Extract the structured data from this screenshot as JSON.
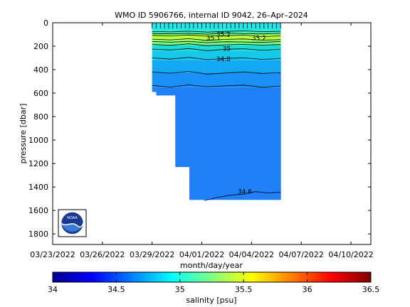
{
  "chart_data": {
    "type": "heatmap",
    "title": "WMO ID 5906766, internal ID 9042, 26–Apr–2024",
    "xlabel": "month/day/year",
    "ylabel": "pressure [dbar]",
    "x_ticks": [
      {
        "day": 0,
        "label": "03/23/2022"
      },
      {
        "day": 3,
        "label": "03/26/2022"
      },
      {
        "day": 6,
        "label": "03/29/2022"
      },
      {
        "day": 9,
        "label": "04/01/2022"
      },
      {
        "day": 12,
        "label": "04/04/2022"
      },
      {
        "day": 15,
        "label": "04/07/2022"
      },
      {
        "day": 18,
        "label": "04/10/2022"
      }
    ],
    "x_start_date": "03/23/2022",
    "xlim_days": [
      0,
      19.2
    ],
    "y_ticks": [
      0,
      200,
      400,
      600,
      800,
      1000,
      1200,
      1400,
      1600,
      1800
    ],
    "ylim": [
      0,
      1890
    ],
    "y_reversed": true,
    "colorbar": {
      "label": "salinity [psu]",
      "ticks": [
        34,
        34.5,
        35,
        35.5,
        36,
        36.5
      ],
      "range": [
        34,
        36.5
      ],
      "colormap": "jet"
    },
    "profiles_days": [
      6.0,
      6.25,
      6.5,
      6.75,
      7.0,
      7.25,
      7.5,
      7.75,
      8.0,
      8.25,
      8.5,
      8.75,
      9.0,
      9.25,
      9.5,
      9.75,
      10.0,
      10.25,
      10.5,
      10.75,
      11.0,
      11.25,
      11.5,
      11.75,
      12.0,
      12.25,
      12.5,
      12.75,
      13.0,
      13.25,
      13.5,
      13.75
    ],
    "data_region": [
      {
        "day_from": 6.0,
        "day_to": 6.25,
        "max_depth": 590
      },
      {
        "day_from": 6.25,
        "day_to": 7.4,
        "max_depth": 620
      },
      {
        "day_from": 7.4,
        "day_to": 8.25,
        "max_depth": 1230
      },
      {
        "day_from": 8.25,
        "day_to": 13.75,
        "max_depth": 1510
      }
    ],
    "salinity_layers": [
      {
        "from_depth": 0,
        "to_depth": 70,
        "salinity": 34.92,
        "color": "#22e8e8"
      },
      {
        "from_depth": 70,
        "to_depth": 100,
        "salinity": 35.05,
        "color": "#4cf0b0"
      },
      {
        "from_depth": 100,
        "to_depth": 150,
        "salinity": 35.2,
        "color": "#b8ff40"
      },
      {
        "from_depth": 150,
        "to_depth": 190,
        "salinity": 35.1,
        "color": "#7cf878"
      },
      {
        "from_depth": 190,
        "to_depth": 240,
        "salinity": 34.95,
        "color": "#18dcd8"
      },
      {
        "from_depth": 240,
        "to_depth": 320,
        "salinity": 34.85,
        "color": "#14c8ec"
      },
      {
        "from_depth": 320,
        "to_depth": 430,
        "salinity": 34.72,
        "color": "#12a8f4"
      },
      {
        "from_depth": 430,
        "to_depth": 550,
        "salinity": 34.65,
        "color": "#1890f6"
      },
      {
        "from_depth": 550,
        "to_depth": 1520,
        "salinity": 34.58,
        "color": "#2080f8"
      }
    ],
    "contours": [
      {
        "level": 35.0,
        "depths": [
          75,
          78,
          72,
          80,
          74,
          70,
          76,
          73
        ]
      },
      {
        "level": 35.1,
        "depths": [
          92,
          95,
          90,
          98,
          88,
          93,
          96,
          91
        ]
      },
      {
        "level": 35.2,
        "depths": [
          108,
          112,
          104,
          115,
          110,
          106,
          118,
          112
        ]
      },
      {
        "level": 35.2,
        "depths": [
          140,
          146,
          136,
          150,
          142,
          138,
          148,
          144
        ]
      },
      {
        "level": 35.1,
        "depths": [
          160,
          166,
          158,
          170,
          162,
          164,
          168,
          160
        ]
      },
      {
        "level": 35.0,
        "depths": [
          185,
          192,
          180,
          195,
          188,
          184,
          190,
          186
        ]
      },
      {
        "level": 34.9,
        "depths": [
          225,
          232,
          220,
          238,
          226,
          222,
          234,
          228
        ]
      },
      {
        "level": 34.8,
        "depths": [
          300,
          310,
          295,
          315,
          305,
          300,
          312,
          306
        ]
      },
      {
        "level": 34.7,
        "depths": [
          420,
          430,
          415,
          438,
          428,
          420,
          432,
          425
        ]
      },
      {
        "level": 34.6,
        "depths": [
          535,
          548,
          530,
          545,
          538,
          532,
          550,
          540
        ]
      }
    ],
    "contour_labels": [
      {
        "text": "35.1",
        "day": 9.7,
        "depth": 130
      },
      {
        "text": "35.2",
        "day": 10.3,
        "depth": 100
      },
      {
        "text": "35.2",
        "day": 12.45,
        "depth": 130
      },
      {
        "text": "35",
        "day": 10.5,
        "depth": 220
      },
      {
        "text": "34.8",
        "day": 10.3,
        "depth": 310
      },
      {
        "text": "34.6",
        "day": 11.6,
        "depth": 1440
      }
    ],
    "deep_contour": {
      "level": 34.6,
      "day_from": 9.15,
      "day_to": 13.75,
      "depths": [
        1515,
        1490,
        1470,
        1462,
        1440,
        1450,
        1445
      ]
    },
    "logo": "NOAA"
  },
  "colors": {
    "background": "#ffffff",
    "axis": "#000000"
  }
}
